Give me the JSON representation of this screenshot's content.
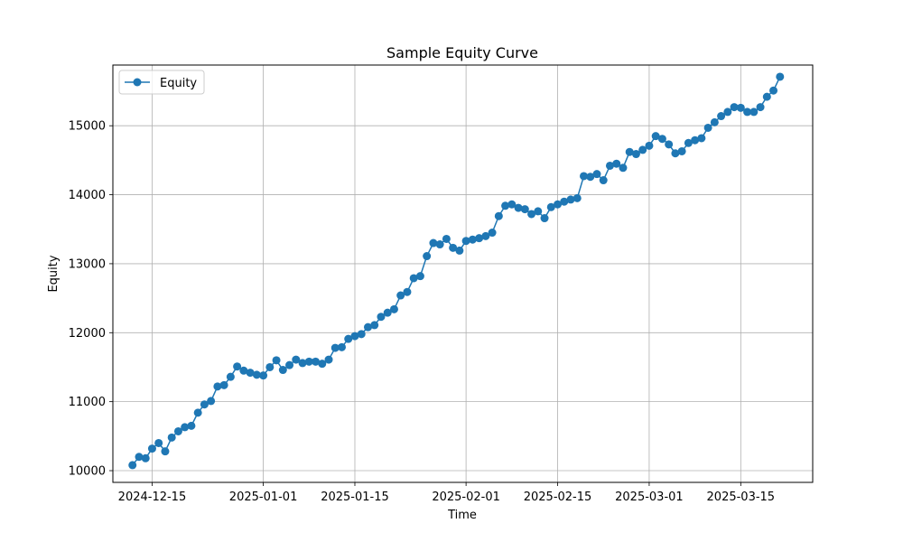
{
  "chart_data": {
    "type": "line",
    "title": "Sample Equity Curve",
    "xlabel": "Time",
    "ylabel": "Equity",
    "x_tick_labels": [
      "2024-12-15",
      "2025-01-01",
      "2025-01-15",
      "2025-02-01",
      "2025-02-15",
      "2025-03-01",
      "2025-03-15"
    ],
    "y_tick_labels": [
      "10000",
      "11000",
      "12000",
      "13000",
      "14000",
      "15000"
    ],
    "xlim": [
      "2024-12-09",
      "2025-03-26"
    ],
    "ylim": [
      9830,
      15880
    ],
    "grid": true,
    "legend_position": "top-left",
    "line_color": "#1f77b4",
    "series": [
      {
        "name": "Equity",
        "x": [
          "2024-12-12",
          "2024-12-13",
          "2024-12-14",
          "2024-12-15",
          "2024-12-16",
          "2024-12-17",
          "2024-12-18",
          "2024-12-19",
          "2024-12-20",
          "2024-12-21",
          "2024-12-22",
          "2024-12-23",
          "2024-12-24",
          "2024-12-25",
          "2024-12-26",
          "2024-12-27",
          "2024-12-28",
          "2024-12-29",
          "2024-12-30",
          "2024-12-31",
          "2025-01-01",
          "2025-01-02",
          "2025-01-03",
          "2025-01-04",
          "2025-01-05",
          "2025-01-06",
          "2025-01-07",
          "2025-01-08",
          "2025-01-09",
          "2025-01-10",
          "2025-01-11",
          "2025-01-12",
          "2025-01-13",
          "2025-01-14",
          "2025-01-15",
          "2025-01-16",
          "2025-01-17",
          "2025-01-18",
          "2025-01-19",
          "2025-01-20",
          "2025-01-21",
          "2025-01-22",
          "2025-01-23",
          "2025-01-24",
          "2025-01-25",
          "2025-01-26",
          "2025-01-27",
          "2025-01-28",
          "2025-01-29",
          "2025-01-30",
          "2025-01-31",
          "2025-02-01",
          "2025-02-02",
          "2025-02-03",
          "2025-02-04",
          "2025-02-05",
          "2025-02-06",
          "2025-02-07",
          "2025-02-08",
          "2025-02-09",
          "2025-02-10",
          "2025-02-11",
          "2025-02-12",
          "2025-02-13",
          "2025-02-14",
          "2025-02-15",
          "2025-02-16",
          "2025-02-17",
          "2025-02-18",
          "2025-02-19",
          "2025-02-20",
          "2025-02-21",
          "2025-02-22",
          "2025-02-23",
          "2025-02-24",
          "2025-02-25",
          "2025-02-26",
          "2025-02-27",
          "2025-02-28",
          "2025-03-01",
          "2025-03-02",
          "2025-03-03",
          "2025-03-04",
          "2025-03-05",
          "2025-03-06",
          "2025-03-07",
          "2025-03-08",
          "2025-03-09",
          "2025-03-10",
          "2025-03-11",
          "2025-03-12",
          "2025-03-13",
          "2025-03-14",
          "2025-03-15",
          "2025-03-16",
          "2025-03-17",
          "2025-03-18",
          "2025-03-19",
          "2025-03-20",
          "2025-03-21"
        ],
        "values": [
          10080,
          10200,
          10180,
          10320,
          10400,
          10280,
          10480,
          10570,
          10630,
          10650,
          10840,
          10960,
          11010,
          11220,
          11240,
          11360,
          11510,
          11450,
          11420,
          11390,
          11380,
          11500,
          11600,
          11460,
          11530,
          11610,
          11560,
          11580,
          11580,
          11550,
          11610,
          11780,
          11790,
          11910,
          11950,
          11980,
          12080,
          12110,
          12230,
          12290,
          12340,
          12540,
          12590,
          12790,
          12820,
          13110,
          13300,
          13280,
          13360,
          13230,
          13190,
          13330,
          13350,
          13370,
          13400,
          13450,
          13690,
          13840,
          13860,
          13810,
          13790,
          13720,
          13760,
          13660,
          13820,
          13860,
          13900,
          13930,
          13950,
          14270,
          14260,
          14300,
          14210,
          14420,
          14450,
          14390,
          14620,
          14590,
          14650,
          14710,
          14850,
          14810,
          14730,
          14600,
          14630,
          14750,
          14790,
          14820,
          14970,
          15050,
          15140,
          15200,
          15270,
          15260,
          15200,
          15200,
          15270,
          15420,
          15510,
          15710
        ]
      }
    ]
  }
}
